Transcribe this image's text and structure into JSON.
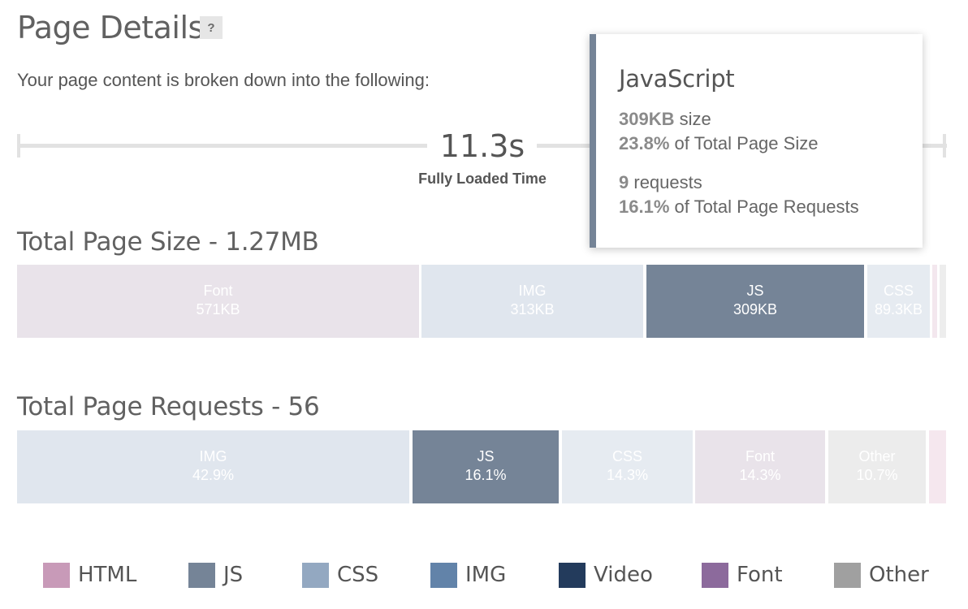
{
  "header": {
    "title": "Page Details",
    "help_label": "?"
  },
  "subtitle": "Your page content is broken down into the following:",
  "load_time": {
    "value": "11.3s",
    "label": "Fully Loaded Time"
  },
  "size_section": {
    "title": "Total Page Size - 1.27MB",
    "segments": [
      {
        "label": "Font",
        "value": "571KB",
        "color": "#e9e3ea"
      },
      {
        "label": "IMG",
        "value": "313KB",
        "color": "#e0e6ee"
      },
      {
        "label": "JS",
        "value": "309KB",
        "color": "#758497"
      },
      {
        "label": "CSS",
        "value": "89.3KB",
        "color": "#e6ebf1"
      },
      {
        "label": "",
        "value": "",
        "color": "#f3e7ee"
      },
      {
        "label": "",
        "value": "",
        "color": "#ededed"
      }
    ]
  },
  "requests_section": {
    "title": "Total Page Requests - 56",
    "segments": [
      {
        "label": "IMG",
        "value": "42.9%",
        "color": "#e0e6ee"
      },
      {
        "label": "JS",
        "value": "16.1%",
        "color": "#758497"
      },
      {
        "label": "CSS",
        "value": "14.3%",
        "color": "#e6ebf1"
      },
      {
        "label": "Font",
        "value": "14.3%",
        "color": "#e9e3ea"
      },
      {
        "label": "Other",
        "value": "10.7%",
        "color": "#ececec"
      },
      {
        "label": "",
        "value": "",
        "color": "#f5e7ee"
      }
    ]
  },
  "legend": [
    {
      "label": "HTML",
      "color": "#c89ab8"
    },
    {
      "label": "JS",
      "color": "#758497"
    },
    {
      "label": "CSS",
      "color": "#93a8c1"
    },
    {
      "label": "IMG",
      "color": "#6283a9"
    },
    {
      "label": "Video",
      "color": "#233b5c"
    },
    {
      "label": "Font",
      "color": "#8c6a9c"
    },
    {
      "label": "Other",
      "color": "#a0a0a0"
    }
  ],
  "tooltip": {
    "title": "JavaScript",
    "size_value": "309KB",
    "size_text": " size",
    "size_pct": "23.8%",
    "size_pct_text": " of Total Page Size",
    "requests_value": "9",
    "requests_text": " requests",
    "requests_pct": "16.1%",
    "requests_pct_text": " of Total Page Requests",
    "accent_color": "#758497"
  }
}
